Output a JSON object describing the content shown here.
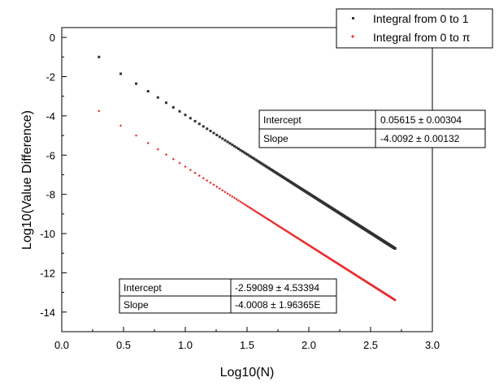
{
  "chart_data": {
    "type": "scatter",
    "xlabel": "Log10(N)",
    "ylabel": "Log10(Value Difference)",
    "xlim": [
      0.0,
      3.0
    ],
    "ylim": [
      -15,
      0.5
    ],
    "xticks": [
      "0.0",
      "0.5",
      "1.0",
      "1.5",
      "2.0",
      "2.5",
      "3.0"
    ],
    "yticks": [
      "0",
      "-2",
      "-4",
      "-6",
      "-8",
      "-10",
      "-12",
      "-14"
    ],
    "grid": false,
    "legend_position": "top-right",
    "x": {
      "from_log10": 0.30103,
      "to_log10": 2.69897,
      "note_points": "N = 2 to 500"
    },
    "series": [
      {
        "name": "Integral from 0 to 1",
        "color": "#333333",
        "marker": "square",
        "fit": {
          "intercept": "0.05615 ± 0.00304",
          "slope": "-4.0092 ± 0.00132"
        },
        "intercept_value": 0.05615,
        "slope_value": -4.0092,
        "start_value": -1.0
      },
      {
        "name": "Integral from 0 to π",
        "color": "#e83030",
        "marker": "diamond",
        "fit": {
          "intercept": "-2.59089 ± 4.53394",
          "slope": "-4.0008 ± 1.96365E"
        },
        "intercept_value": -2.59089,
        "slope_value": -4.0008,
        "start_value": -3.75
      }
    ]
  },
  "fit_table_1": {
    "intercept_label": "Intercept",
    "slope_label": "Slope",
    "intercept_value": "0.05615 ± 0.00304",
    "slope_value": "-4.0092 ± 0.00132"
  },
  "fit_table_2": {
    "intercept_label": "Intercept",
    "slope_label": "Slope",
    "intercept_value": "-2.59089 ± 4.53394",
    "slope_value": "-4.0008 ± 1.96365E"
  },
  "legend": {
    "entries": [
      "Integral from 0 to 1",
      "Integral from 0 to π"
    ]
  }
}
